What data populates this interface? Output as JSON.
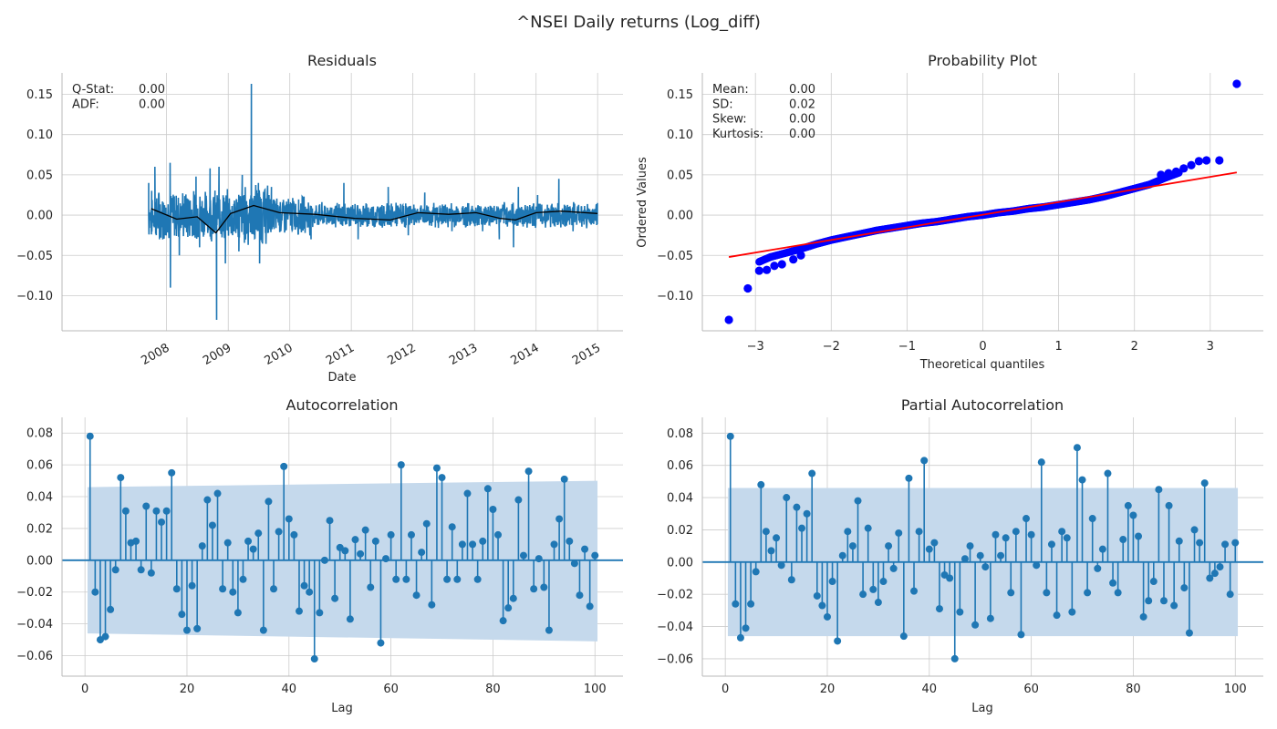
{
  "figure_title": "^NSEI Daily returns (Log_diff)",
  "colors": {
    "series": "#1f77b4",
    "rolling": "#000000",
    "points": "#0000ff",
    "fit_line": "#ff0000",
    "band": "#c5d9ec"
  },
  "chart_data": [
    {
      "id": "residuals",
      "type": "line",
      "title": "Residuals",
      "xlabel": "Date",
      "ylabel": "",
      "x_ticks": [
        "2008",
        "2009",
        "2010",
        "2011",
        "2012",
        "2013",
        "2014",
        "2015"
      ],
      "y_ticks": [
        "0.15",
        "0.10",
        "0.05",
        "0.00",
        "−0.05",
        "−0.10"
      ],
      "xlim": [
        "2007-09-17",
        "2014-12-31"
      ],
      "ylim": [
        -0.13,
        0.163
      ],
      "grid": true,
      "stats": [
        {
          "label": "Q-Stat:",
          "value": "0.00"
        },
        {
          "label": "ADF:",
          "value": "0.00"
        }
      ],
      "series": [
        {
          "name": "",
          "color": "#1f77b4",
          "points": [
            [
              "2007-09-17",
              0.04
            ],
            [
              "2007-10-24",
              0.06
            ],
            [
              "2007-11-20",
              -0.03
            ],
            [
              "2008-01-22",
              0.065
            ],
            [
              "2008-01-24",
              -0.09
            ],
            [
              "2008-03-17",
              -0.05
            ],
            [
              "2008-06-24",
              0.048
            ],
            [
              "2008-07-15",
              -0.04
            ],
            [
              "2008-09-15",
              0.058
            ],
            [
              "2008-10-24",
              -0.13
            ],
            [
              "2008-11-07",
              0.06
            ],
            [
              "2008-12-15",
              -0.06
            ],
            [
              "2009-03-05",
              -0.045
            ],
            [
              "2009-03-25",
              0.05
            ],
            [
              "2009-05-18",
              0.163
            ],
            [
              "2009-06-29",
              0.04
            ],
            [
              "2009-07-06",
              -0.06
            ],
            [
              "2009-09-14",
              0.035
            ],
            [
              "2010-05-07",
              -0.03
            ],
            [
              "2010-11-18",
              0.04
            ],
            [
              "2011-02-10",
              -0.03
            ],
            [
              "2011-08-08",
              0.035
            ],
            [
              "2011-12-05",
              -0.025
            ],
            [
              "2012-03-12",
              0.028
            ],
            [
              "2012-08-20",
              -0.02
            ],
            [
              "2013-02-18",
              -0.02
            ],
            [
              "2013-05-28",
              -0.03
            ],
            [
              "2013-08-20",
              -0.04
            ],
            [
              "2013-09-18",
              0.035
            ],
            [
              "2014-01-10",
              0.025
            ],
            [
              "2014-05-16",
              0.045
            ],
            [
              "2014-08-08",
              -0.02
            ],
            [
              "2014-12-31",
              0.015
            ]
          ]
        },
        {
          "name": "",
          "color": "#000000",
          "points": [
            [
              "2007-10-02",
              0.008
            ],
            [
              "2008-03-01",
              -0.005
            ],
            [
              "2008-07-01",
              -0.002
            ],
            [
              "2008-10-20",
              -0.022
            ],
            [
              "2009-01-15",
              0.002
            ],
            [
              "2009-06-01",
              0.012
            ],
            [
              "2009-11-01",
              0.003
            ],
            [
              "2010-06-01",
              0.001
            ],
            [
              "2011-01-20",
              -0.004
            ],
            [
              "2011-08-20",
              -0.006
            ],
            [
              "2012-02-01",
              0.003
            ],
            [
              "2012-08-01",
              0.001
            ],
            [
              "2013-01-10",
              0.003
            ],
            [
              "2013-06-01",
              -0.004
            ],
            [
              "2013-09-01",
              -0.006
            ],
            [
              "2014-01-01",
              0.003
            ],
            [
              "2014-06-01",
              0.005
            ],
            [
              "2014-12-31",
              0.002
            ]
          ]
        }
      ]
    },
    {
      "id": "probplot",
      "type": "scatter",
      "title": "Probability Plot",
      "xlabel": "Theoretical quantiles",
      "ylabel": "Ordered Values",
      "x_ticks": [
        "−3",
        "−2",
        "−1",
        "0",
        "1",
        "2",
        "3"
      ],
      "y_ticks": [
        "0.15",
        "0.10",
        "0.05",
        "0.00",
        "−0.05",
        "−0.10"
      ],
      "xlim": [
        -3.7,
        3.7
      ],
      "ylim": [
        -0.13,
        0.163
      ],
      "grid": true,
      "stats": [
        {
          "label": "Mean:",
          "value": "0.00"
        },
        {
          "label": "SD:",
          "value": "0.02"
        },
        {
          "label": "Skew:",
          "value": "0.00"
        },
        {
          "label": "Kurtosis:",
          "value": "0.00"
        }
      ],
      "fit_line": {
        "from": [
          -3.35,
          -0.052
        ],
        "to": [
          3.35,
          0.053
        ]
      },
      "curve_points": [
        [
          -2.95,
          -0.058
        ],
        [
          -2.8,
          -0.052
        ],
        [
          -2.6,
          -0.047
        ],
        [
          -2.4,
          -0.042
        ],
        [
          -2.2,
          -0.036
        ],
        [
          -2.0,
          -0.031
        ],
        [
          -1.8,
          -0.027
        ],
        [
          -1.6,
          -0.023
        ],
        [
          -1.4,
          -0.019
        ],
        [
          -1.2,
          -0.016
        ],
        [
          -1.0,
          -0.013
        ],
        [
          -0.8,
          -0.01
        ],
        [
          -0.6,
          -0.008
        ],
        [
          -0.4,
          -0.005
        ],
        [
          -0.2,
          -0.002
        ],
        [
          0.0,
          0.0
        ],
        [
          0.2,
          0.003
        ],
        [
          0.4,
          0.005
        ],
        [
          0.6,
          0.008
        ],
        [
          0.8,
          0.01
        ],
        [
          1.0,
          0.013
        ],
        [
          1.2,
          0.016
        ],
        [
          1.4,
          0.019
        ],
        [
          1.6,
          0.023
        ],
        [
          1.8,
          0.028
        ],
        [
          2.0,
          0.033
        ],
        [
          2.2,
          0.038
        ],
        [
          2.4,
          0.046
        ],
        [
          2.6,
          0.053
        ]
      ],
      "outliers": [
        [
          -3.35,
          -0.13
        ],
        [
          -3.1,
          -0.091
        ],
        [
          -2.95,
          -0.069
        ],
        [
          -2.85,
          -0.068
        ],
        [
          -2.75,
          -0.063
        ],
        [
          -2.65,
          -0.061
        ],
        [
          -2.5,
          -0.055
        ],
        [
          -2.4,
          -0.05
        ],
        [
          2.35,
          0.05
        ],
        [
          2.45,
          0.052
        ],
        [
          2.55,
          0.054
        ],
        [
          2.65,
          0.058
        ],
        [
          2.75,
          0.062
        ],
        [
          2.85,
          0.067
        ],
        [
          2.95,
          0.068
        ],
        [
          3.12,
          0.068
        ],
        [
          3.35,
          0.163
        ]
      ]
    },
    {
      "id": "acf",
      "type": "bar",
      "title": "Autocorrelation",
      "xlabel": "Lag",
      "ylabel": "",
      "x_ticks": [
        "0",
        "20",
        "40",
        "60",
        "80",
        "100"
      ],
      "y_ticks": [
        "0.08",
        "0.06",
        "0.04",
        "0.02",
        "0.00",
        "−0.02",
        "−0.04",
        "−0.06"
      ],
      "xlim": [
        -4.5,
        105.5
      ],
      "ylim": [
        -0.066,
        0.083
      ],
      "grid": true,
      "conf_band": {
        "lags": [
          1,
          100
        ],
        "lower": [
          -0.046,
          -0.051
        ],
        "upper": [
          0.046,
          0.05
        ]
      },
      "lags": [
        1,
        2,
        3,
        4,
        5,
        6,
        7,
        8,
        9,
        10,
        11,
        12,
        13,
        14,
        15,
        16,
        17,
        18,
        19,
        20,
        21,
        22,
        23,
        24,
        25,
        26,
        27,
        28,
        29,
        30,
        31,
        32,
        33,
        34,
        35,
        36,
        37,
        38,
        39,
        40,
        41,
        42,
        43,
        44,
        45,
        46,
        47,
        48,
        49,
        50,
        51,
        52,
        53,
        54,
        55,
        56,
        57,
        58,
        59,
        60,
        61,
        62,
        63,
        64,
        65,
        66,
        67,
        68,
        69,
        70,
        71,
        72,
        73,
        74,
        75,
        76,
        77,
        78,
        79,
        80,
        81,
        82,
        83,
        84,
        85,
        86,
        87,
        88,
        89,
        90,
        91,
        92,
        93,
        94,
        95,
        96,
        97,
        98,
        99,
        100
      ],
      "values": [
        0.078,
        -0.02,
        -0.05,
        -0.048,
        -0.031,
        -0.006,
        0.052,
        0.031,
        0.011,
        0.012,
        -0.006,
        0.034,
        -0.008,
        0.031,
        0.024,
        0.031,
        0.055,
        -0.018,
        -0.034,
        -0.044,
        -0.016,
        -0.043,
        0.009,
        0.038,
        0.022,
        0.042,
        -0.018,
        0.011,
        -0.02,
        -0.033,
        -0.012,
        0.012,
        0.007,
        0.017,
        -0.044,
        0.037,
        -0.018,
        0.018,
        0.059,
        0.026,
        0.016,
        -0.032,
        -0.016,
        -0.02,
        -0.062,
        -0.033,
        0.0,
        0.025,
        -0.024,
        0.008,
        0.006,
        -0.037,
        0.013,
        0.004,
        0.019,
        -0.017,
        0.012,
        -0.052,
        0.001,
        0.016,
        -0.012,
        0.06,
        -0.012,
        0.016,
        -0.022,
        0.005,
        0.023,
        -0.028,
        0.058,
        0.052,
        -0.012,
        0.021,
        -0.012,
        0.01,
        0.042,
        0.01,
        -0.012,
        0.012,
        0.045,
        0.032,
        0.016,
        -0.038,
        -0.03,
        -0.024,
        0.038,
        0.003,
        0.056,
        -0.018,
        0.001,
        -0.017,
        -0.044,
        0.01,
        0.026,
        0.051,
        0.012,
        -0.002,
        -0.022,
        0.007,
        -0.029,
        0.003
      ]
    },
    {
      "id": "pacf",
      "type": "bar",
      "title": "Partial Autocorrelation",
      "xlabel": "Lag",
      "ylabel": "",
      "x_ticks": [
        "0",
        "20",
        "40",
        "60",
        "80",
        "100"
      ],
      "y_ticks": [
        "0.08",
        "0.06",
        "0.04",
        "0.02",
        "0.00",
        "−0.02",
        "−0.04",
        "−0.06"
      ],
      "xlim": [
        -4.5,
        105.5
      ],
      "ylim": [
        -0.064,
        0.083
      ],
      "grid": true,
      "conf_band": {
        "lags": [
          1,
          100
        ],
        "lower": [
          -0.046,
          -0.046
        ],
        "upper": [
          0.046,
          0.046
        ]
      },
      "lags": [
        1,
        2,
        3,
        4,
        5,
        6,
        7,
        8,
        9,
        10,
        11,
        12,
        13,
        14,
        15,
        16,
        17,
        18,
        19,
        20,
        21,
        22,
        23,
        24,
        25,
        26,
        27,
        28,
        29,
        30,
        31,
        32,
        33,
        34,
        35,
        36,
        37,
        38,
        39,
        40,
        41,
        42,
        43,
        44,
        45,
        46,
        47,
        48,
        49,
        50,
        51,
        52,
        53,
        54,
        55,
        56,
        57,
        58,
        59,
        60,
        61,
        62,
        63,
        64,
        65,
        66,
        67,
        68,
        69,
        70,
        71,
        72,
        73,
        74,
        75,
        76,
        77,
        78,
        79,
        80,
        81,
        82,
        83,
        84,
        85,
        86,
        87,
        88,
        89,
        90,
        91,
        92,
        93,
        94,
        95,
        96,
        97,
        98,
        99,
        100
      ],
      "values": [
        0.078,
        -0.026,
        -0.047,
        -0.041,
        -0.026,
        -0.006,
        0.048,
        0.019,
        0.007,
        0.015,
        -0.002,
        0.04,
        -0.011,
        0.034,
        0.021,
        0.03,
        0.055,
        -0.021,
        -0.027,
        -0.034,
        -0.012,
        -0.049,
        0.004,
        0.019,
        0.01,
        0.038,
        -0.02,
        0.021,
        -0.017,
        -0.025,
        -0.012,
        0.01,
        -0.004,
        0.018,
        -0.046,
        0.052,
        -0.018,
        0.019,
        0.063,
        0.008,
        0.012,
        -0.029,
        -0.008,
        -0.01,
        -0.06,
        -0.031,
        0.002,
        0.01,
        -0.039,
        0.004,
        -0.003,
        -0.035,
        0.017,
        0.004,
        0.015,
        -0.019,
        0.019,
        -0.045,
        0.027,
        0.017,
        -0.002,
        0.062,
        -0.019,
        0.011,
        -0.033,
        0.019,
        0.015,
        -0.031,
        0.071,
        0.051,
        -0.019,
        0.027,
        -0.004,
        0.008,
        0.055,
        -0.013,
        -0.019,
        0.014,
        0.035,
        0.029,
        0.016,
        -0.034,
        -0.024,
        -0.012,
        0.045,
        -0.024,
        0.035,
        -0.027,
        0.013,
        -0.016,
        -0.044,
        0.02,
        0.012,
        0.049,
        -0.01,
        -0.007,
        -0.003,
        0.011,
        -0.02,
        0.012
      ]
    }
  ]
}
